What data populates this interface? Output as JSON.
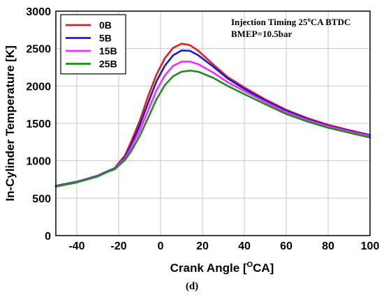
{
  "chart_data": {
    "type": "line",
    "xlabel": "Crank Angle [",
    "xlabel_unit": "O",
    "xlabel_suffix": "CA]",
    "ylabel": "In-Cylinder Temperature [K]",
    "xlim": [
      -50,
      100
    ],
    "ylim": [
      0,
      3000
    ],
    "xticks": [
      -40,
      -20,
      0,
      20,
      40,
      60,
      80,
      100
    ],
    "yticks": [
      0,
      500,
      1000,
      1500,
      2000,
      2500,
      3000
    ],
    "grid": true,
    "legend_position": "top-left",
    "annotation_line1_prefix": "Injection Timing 25",
    "annotation_line1_sup": "o",
    "annotation_line1_suffix": "CA BTDC",
    "annotation_line2": "BMEP=10.5bar",
    "caption": "(d)",
    "series": [
      {
        "name": "0B",
        "color": "#e81c1c",
        "points": [
          [
            -50,
            665
          ],
          [
            -40,
            720
          ],
          [
            -30,
            800
          ],
          [
            -25,
            865
          ],
          [
            -22,
            900
          ],
          [
            -20,
            970
          ],
          [
            -17,
            1070
          ],
          [
            -14,
            1260
          ],
          [
            -10,
            1530
          ],
          [
            -6,
            1860
          ],
          [
            -2,
            2150
          ],
          [
            2,
            2370
          ],
          [
            6,
            2510
          ],
          [
            10,
            2565
          ],
          [
            14,
            2545
          ],
          [
            18,
            2470
          ],
          [
            25,
            2290
          ],
          [
            32,
            2120
          ],
          [
            40,
            1980
          ],
          [
            50,
            1820
          ],
          [
            60,
            1680
          ],
          [
            70,
            1570
          ],
          [
            80,
            1480
          ],
          [
            90,
            1410
          ],
          [
            100,
            1345
          ]
        ]
      },
      {
        "name": "5B",
        "color": "#1a1ad6",
        "points": [
          [
            -50,
            665
          ],
          [
            -40,
            720
          ],
          [
            -30,
            800
          ],
          [
            -25,
            865
          ],
          [
            -22,
            895
          ],
          [
            -20,
            960
          ],
          [
            -17,
            1050
          ],
          [
            -14,
            1220
          ],
          [
            -10,
            1470
          ],
          [
            -6,
            1770
          ],
          [
            -2,
            2060
          ],
          [
            2,
            2270
          ],
          [
            6,
            2410
          ],
          [
            10,
            2475
          ],
          [
            14,
            2470
          ],
          [
            18,
            2410
          ],
          [
            25,
            2260
          ],
          [
            32,
            2100
          ],
          [
            40,
            1960
          ],
          [
            50,
            1805
          ],
          [
            60,
            1670
          ],
          [
            70,
            1560
          ],
          [
            80,
            1470
          ],
          [
            90,
            1400
          ],
          [
            100,
            1340
          ]
        ]
      },
      {
        "name": "15B",
        "color": "#f030f0",
        "points": [
          [
            -50,
            660
          ],
          [
            -40,
            715
          ],
          [
            -30,
            795
          ],
          [
            -25,
            860
          ],
          [
            -22,
            890
          ],
          [
            -20,
            950
          ],
          [
            -17,
            1030
          ],
          [
            -14,
            1180
          ],
          [
            -10,
            1400
          ],
          [
            -6,
            1670
          ],
          [
            -2,
            1940
          ],
          [
            2,
            2140
          ],
          [
            6,
            2270
          ],
          [
            10,
            2325
          ],
          [
            14,
            2325
          ],
          [
            18,
            2290
          ],
          [
            25,
            2180
          ],
          [
            32,
            2050
          ],
          [
            40,
            1930
          ],
          [
            50,
            1785
          ],
          [
            60,
            1650
          ],
          [
            70,
            1545
          ],
          [
            80,
            1460
          ],
          [
            90,
            1390
          ],
          [
            100,
            1330
          ]
        ]
      },
      {
        "name": "25B",
        "color": "#1e8c1e",
        "points": [
          [
            -50,
            655
          ],
          [
            -40,
            710
          ],
          [
            -30,
            790
          ],
          [
            -25,
            855
          ],
          [
            -22,
            885
          ],
          [
            -20,
            935
          ],
          [
            -17,
            1010
          ],
          [
            -14,
            1130
          ],
          [
            -10,
            1330
          ],
          [
            -6,
            1570
          ],
          [
            -2,
            1820
          ],
          [
            2,
            2010
          ],
          [
            6,
            2130
          ],
          [
            10,
            2190
          ],
          [
            14,
            2205
          ],
          [
            18,
            2190
          ],
          [
            25,
            2110
          ],
          [
            32,
            2000
          ],
          [
            40,
            1890
          ],
          [
            50,
            1755
          ],
          [
            60,
            1625
          ],
          [
            70,
            1525
          ],
          [
            80,
            1440
          ],
          [
            90,
            1375
          ],
          [
            100,
            1310
          ]
        ]
      }
    ]
  }
}
